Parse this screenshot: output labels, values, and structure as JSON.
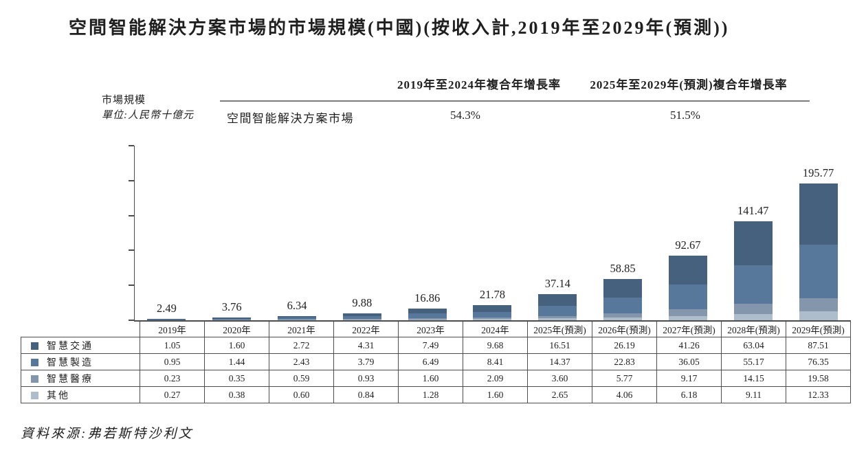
{
  "title": "空間智能解決方案市場的市場規模(中國)(按收入計,2019年至2029年(預測))",
  "cagr_table": {
    "col1_header": "2019年至2024年複合年增長率",
    "col2_header": "2025年至2029年(預測)複合年增長率",
    "row_label": "空間智能解決方案市場",
    "col1_value": "54.3%",
    "col2_value": "51.5%"
  },
  "axis_unit": {
    "line1": "市場規模",
    "line2": "單位:人民幣十億元"
  },
  "source": "資料來源:弗若斯特沙利文",
  "colors": {
    "traffic": "#45617E",
    "manufacturing": "#57789A",
    "healthcare": "#8496AC",
    "others": "#AEBDCB",
    "axis": "#4C4C4C",
    "table_border": "#4D4D4D"
  },
  "chart_data": {
    "type": "bar",
    "stacked": true,
    "title": "空間智能解決方案市場的市場規模(中國)(按收入計,2019年至2029年(預測))",
    "xlabel": "",
    "ylabel": "市場規模 單位:人民幣十億元",
    "ylim": [
      0,
      250
    ],
    "ytick_labels": [
      "250.00",
      "200.00",
      "150.00",
      "100.00",
      "50.00",
      "0.00"
    ],
    "grid": false,
    "legend_position": "left-table",
    "categories": [
      "2019年",
      "2020年",
      "2021年",
      "2022年",
      "2023年",
      "2024年",
      "2025年(預測)",
      "2026年(預測)",
      "2027年(預測)",
      "2028年(預測)",
      "2029年(預測)"
    ],
    "totals": [
      2.49,
      3.76,
      6.34,
      9.88,
      16.86,
      21.78,
      37.14,
      58.85,
      92.67,
      141.47,
      195.77
    ],
    "series": [
      {
        "name": "智慧交通",
        "color": "#45617E",
        "values": [
          1.05,
          1.6,
          2.72,
          4.31,
          7.49,
          9.68,
          16.51,
          26.19,
          41.26,
          63.04,
          87.51
        ]
      },
      {
        "name": "智慧製造",
        "color": "#57789A",
        "values": [
          0.95,
          1.44,
          2.43,
          3.79,
          6.49,
          8.41,
          14.37,
          22.83,
          36.05,
          55.17,
          76.35
        ]
      },
      {
        "name": "智慧醫療",
        "color": "#8496AC",
        "values": [
          0.23,
          0.35,
          0.59,
          0.93,
          1.6,
          2.09,
          3.6,
          5.77,
          9.17,
          14.15,
          19.58
        ]
      },
      {
        "name": "其他",
        "color": "#AEBDCB",
        "values": [
          0.27,
          0.38,
          0.6,
          0.84,
          1.28,
          1.6,
          2.65,
          4.06,
          6.18,
          9.11,
          12.33
        ]
      }
    ]
  }
}
